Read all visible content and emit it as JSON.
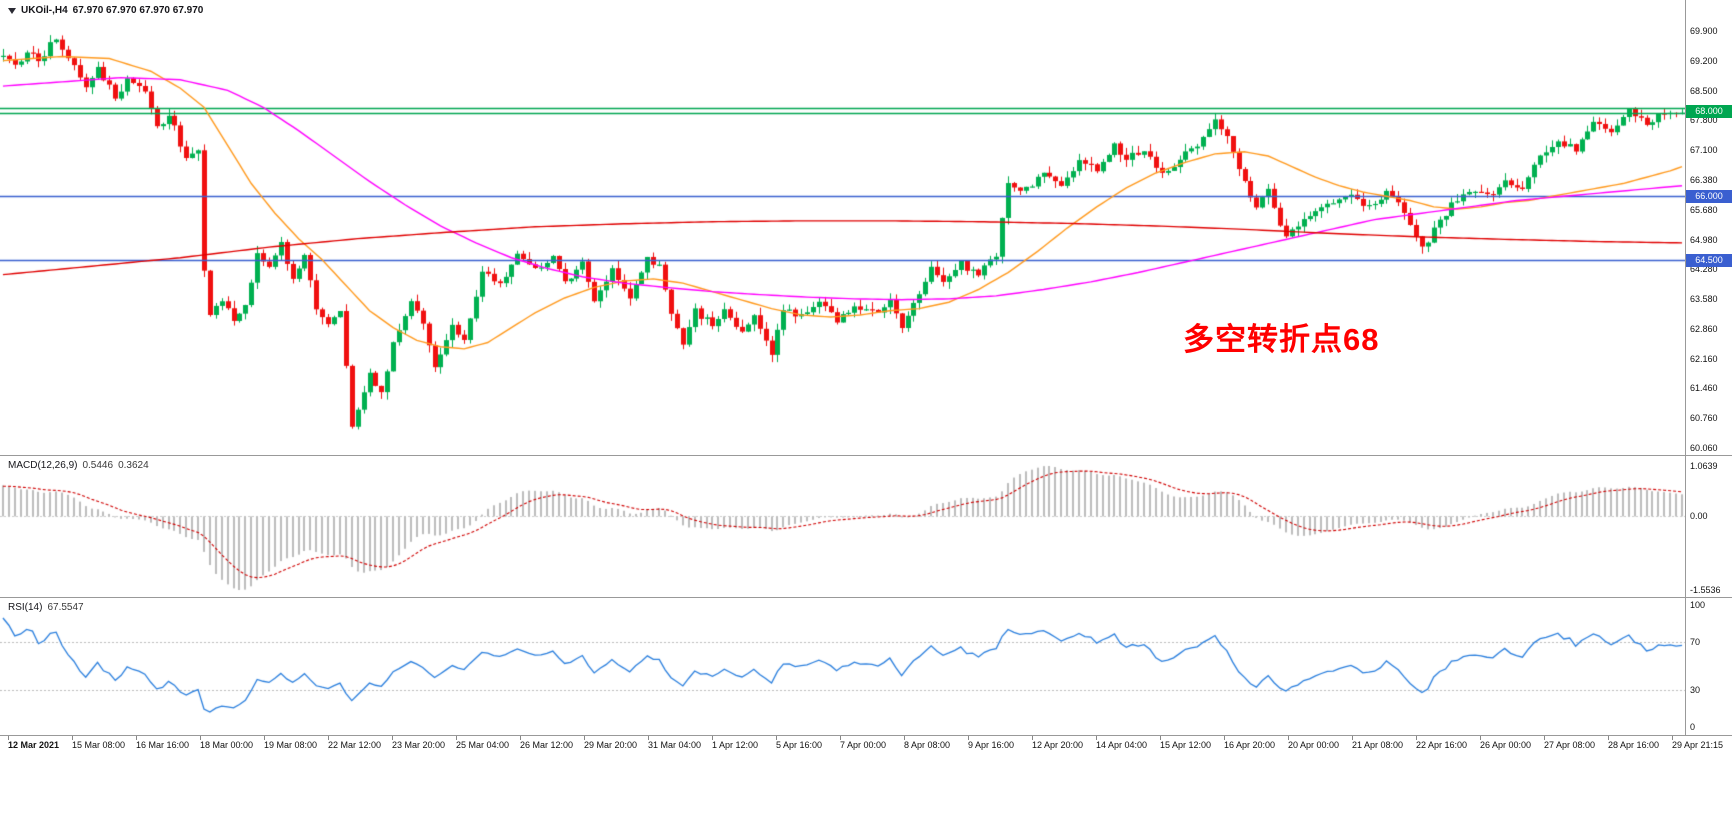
{
  "header": {
    "symbol_period": "UKOil-,H4",
    "ohlc_values": "67.970 67.970 67.970 67.970"
  },
  "colors": {
    "bull": "#00B050",
    "bear": "#F01010",
    "ma_fast": "#FF9A1E",
    "ma_mid": "#FF00FF",
    "ma_slow": "#E00000",
    "hline_blue": "#3A5FD0",
    "hline_green": "#00A651",
    "macd_hist": "#BDBDBD",
    "macd_signal": "#D00000",
    "rsi_line": "#2A7FDE",
    "level_line": "#BBBBBB",
    "annotation": "#FF0000",
    "axis_text": "#111111"
  },
  "chart_data": {
    "type": "candlestick+indicators",
    "main": {
      "annotation": "多空转折点68",
      "bar_count": 285,
      "last_close": 67.97,
      "axis_top_price": 69.9,
      "axis_bottom_price": 60.06,
      "price_labels": [
        "69.900",
        "69.200",
        "68.500",
        "67.800",
        "67.100",
        "66.380",
        "65.680",
        "64.980",
        "64.280",
        "63.580",
        "62.860",
        "62.160",
        "61.460",
        "60.760",
        "60.060"
      ],
      "close_path": [
        [
          0,
          69.35
        ],
        [
          2,
          69.1
        ],
        [
          4,
          69.4
        ],
        [
          6,
          69.2
        ],
        [
          9,
          69.75
        ],
        [
          11,
          69.3
        ],
        [
          14,
          68.65
        ],
        [
          16,
          69.0
        ],
        [
          19,
          68.35
        ],
        [
          21,
          68.75
        ],
        [
          24,
          68.5
        ],
        [
          26,
          67.6
        ],
        [
          28,
          67.95
        ],
        [
          31,
          66.9
        ],
        [
          33,
          67.05
        ],
        [
          34,
          64.2
        ],
        [
          35,
          63.15
        ],
        [
          37,
          63.6
        ],
        [
          39,
          63.0
        ],
        [
          41,
          63.4
        ],
        [
          43,
          64.65
        ],
        [
          45,
          64.35
        ],
        [
          47,
          64.85
        ],
        [
          49,
          64.0
        ],
        [
          51,
          64.55
        ],
        [
          53,
          63.4
        ],
        [
          55,
          62.95
        ],
        [
          57,
          63.35
        ],
        [
          59,
          60.6
        ],
        [
          60,
          60.95
        ],
        [
          62,
          61.9
        ],
        [
          64,
          61.3
        ],
        [
          66,
          62.5
        ],
        [
          69,
          63.45
        ],
        [
          71,
          63.0
        ],
        [
          73,
          61.95
        ],
        [
          76,
          62.95
        ],
        [
          78,
          62.6
        ],
        [
          81,
          64.25
        ],
        [
          84,
          63.95
        ],
        [
          87,
          64.6
        ],
        [
          90,
          64.3
        ],
        [
          93,
          64.55
        ],
        [
          95,
          63.95
        ],
        [
          98,
          64.45
        ],
        [
          100,
          63.5
        ],
        [
          103,
          64.3
        ],
        [
          106,
          63.55
        ],
        [
          109,
          64.5
        ],
        [
          111,
          64.35
        ],
        [
          113,
          63.3
        ],
        [
          115,
          62.55
        ],
        [
          117,
          63.3
        ],
        [
          120,
          62.95
        ],
        [
          122,
          63.35
        ],
        [
          125,
          62.75
        ],
        [
          127,
          63.2
        ],
        [
          130,
          62.3
        ],
        [
          132,
          63.3
        ],
        [
          135,
          63.2
        ],
        [
          138,
          63.5
        ],
        [
          141,
          63.1
        ],
        [
          144,
          63.4
        ],
        [
          147,
          63.25
        ],
        [
          150,
          63.5
        ],
        [
          152,
          62.85
        ],
        [
          154,
          63.5
        ],
        [
          157,
          64.3
        ],
        [
          159,
          63.95
        ],
        [
          162,
          64.4
        ],
        [
          165,
          64.15
        ],
        [
          168,
          64.6
        ],
        [
          170,
          66.3
        ],
        [
          173,
          66.15
        ],
        [
          176,
          66.5
        ],
        [
          179,
          66.3
        ],
        [
          182,
          66.85
        ],
        [
          185,
          66.6
        ],
        [
          188,
          67.2
        ],
        [
          190,
          66.9
        ],
        [
          193,
          67.1
        ],
        [
          196,
          66.5
        ],
        [
          199,
          66.85
        ],
        [
          202,
          67.25
        ],
        [
          205,
          67.8
        ],
        [
          207,
          67.35
        ],
        [
          210,
          66.35
        ],
        [
          212,
          65.75
        ],
        [
          214,
          66.1
        ],
        [
          217,
          65.0
        ],
        [
          219,
          65.35
        ],
        [
          222,
          65.6
        ],
        [
          225,
          65.9
        ],
        [
          228,
          66.0
        ],
        [
          231,
          65.75
        ],
        [
          234,
          66.1
        ],
        [
          237,
          65.65
        ],
        [
          240,
          64.75
        ],
        [
          242,
          65.2
        ],
        [
          245,
          65.8
        ],
        [
          248,
          66.1
        ],
        [
          251,
          66.0
        ],
        [
          254,
          66.3
        ],
        [
          257,
          66.2
        ],
        [
          260,
          66.9
        ],
        [
          263,
          67.3
        ],
        [
          266,
          67.1
        ],
        [
          269,
          67.75
        ],
        [
          272,
          67.5
        ],
        [
          275,
          68.05
        ],
        [
          278,
          67.7
        ],
        [
          281,
          68.0
        ],
        [
          284,
          67.97
        ]
      ],
      "ma_lines": [
        {
          "name": "ma-fast-orange",
          "color": "#FF9A1E",
          "path": [
            [
              0,
              69.2
            ],
            [
              10,
              69.3
            ],
            [
              18,
              69.25
            ],
            [
              25,
              68.95
            ],
            [
              30,
              68.55
            ],
            [
              34,
              68.1
            ],
            [
              38,
              67.2
            ],
            [
              42,
              66.3
            ],
            [
              46,
              65.6
            ],
            [
              50,
              65.0
            ],
            [
              54,
              64.5
            ],
            [
              58,
              63.9
            ],
            [
              62,
              63.3
            ],
            [
              66,
              62.9
            ],
            [
              70,
              62.6
            ],
            [
              74,
              62.45
            ],
            [
              78,
              62.4
            ],
            [
              82,
              62.55
            ],
            [
              86,
              62.9
            ],
            [
              90,
              63.25
            ],
            [
              95,
              63.6
            ],
            [
              100,
              63.85
            ],
            [
              105,
              64.0
            ],
            [
              110,
              64.05
            ],
            [
              115,
              63.95
            ],
            [
              120,
              63.75
            ],
            [
              125,
              63.55
            ],
            [
              130,
              63.35
            ],
            [
              135,
              63.2
            ],
            [
              140,
              63.15
            ],
            [
              145,
              63.2
            ],
            [
              150,
              63.3
            ],
            [
              155,
              63.35
            ],
            [
              160,
              63.5
            ],
            [
              165,
              63.8
            ],
            [
              170,
              64.2
            ],
            [
              175,
              64.7
            ],
            [
              180,
              65.25
            ],
            [
              185,
              65.75
            ],
            [
              190,
              66.2
            ],
            [
              195,
              66.55
            ],
            [
              200,
              66.8
            ],
            [
              205,
              67.0
            ],
            [
              210,
              67.05
            ],
            [
              214,
              66.95
            ],
            [
              218,
              66.7
            ],
            [
              222,
              66.45
            ],
            [
              226,
              66.25
            ],
            [
              230,
              66.1
            ],
            [
              234,
              66.0
            ],
            [
              238,
              65.9
            ],
            [
              242,
              65.75
            ],
            [
              246,
              65.7
            ],
            [
              250,
              65.75
            ],
            [
              254,
              65.85
            ],
            [
              258,
              65.9
            ],
            [
              262,
              66.0
            ],
            [
              266,
              66.1
            ],
            [
              270,
              66.2
            ],
            [
              274,
              66.3
            ],
            [
              278,
              66.45
            ],
            [
              282,
              66.6
            ],
            [
              284,
              66.7
            ]
          ]
        },
        {
          "name": "ma-mid-magenta",
          "color": "#FF00FF",
          "path": [
            [
              0,
              68.6
            ],
            [
              10,
              68.7
            ],
            [
              20,
              68.8
            ],
            [
              30,
              68.75
            ],
            [
              38,
              68.5
            ],
            [
              44,
              68.1
            ],
            [
              50,
              67.55
            ],
            [
              56,
              66.95
            ],
            [
              62,
              66.35
            ],
            [
              68,
              65.8
            ],
            [
              74,
              65.3
            ],
            [
              80,
              64.9
            ],
            [
              86,
              64.55
            ],
            [
              92,
              64.3
            ],
            [
              98,
              64.1
            ],
            [
              105,
              63.95
            ],
            [
              112,
              63.85
            ],
            [
              120,
              63.75
            ],
            [
              128,
              63.68
            ],
            [
              136,
              63.62
            ],
            [
              144,
              63.58
            ],
            [
              152,
              63.56
            ],
            [
              160,
              63.58
            ],
            [
              168,
              63.65
            ],
            [
              176,
              63.8
            ],
            [
              184,
              63.98
            ],
            [
              192,
              64.2
            ],
            [
              200,
              64.45
            ],
            [
              208,
              64.7
            ],
            [
              216,
              64.95
            ],
            [
              224,
              65.2
            ],
            [
              232,
              65.45
            ],
            [
              240,
              65.6
            ],
            [
              248,
              65.75
            ],
            [
              256,
              65.9
            ],
            [
              264,
              66.0
            ],
            [
              272,
              66.1
            ],
            [
              280,
              66.2
            ],
            [
              284,
              66.25
            ]
          ]
        },
        {
          "name": "ma-slow-red",
          "color": "#E00000",
          "path": [
            [
              0,
              64.15
            ],
            [
              15,
              64.35
            ],
            [
              30,
              64.55
            ],
            [
              45,
              64.8
            ],
            [
              60,
              65.0
            ],
            [
              75,
              65.15
            ],
            [
              90,
              65.28
            ],
            [
              105,
              65.35
            ],
            [
              120,
              65.4
            ],
            [
              135,
              65.42
            ],
            [
              150,
              65.42
            ],
            [
              165,
              65.4
            ],
            [
              180,
              65.36
            ],
            [
              195,
              65.3
            ],
            [
              210,
              65.22
            ],
            [
              225,
              65.12
            ],
            [
              240,
              65.04
            ],
            [
              255,
              64.98
            ],
            [
              270,
              64.93
            ],
            [
              284,
              64.9
            ]
          ]
        }
      ],
      "hlines": [
        {
          "name": "resistance-68-zone",
          "prices": [
            68.08,
            67.96
          ],
          "tag": "68.000",
          "tag_price": 68.02,
          "color": "#00A651"
        },
        {
          "name": "level-66",
          "prices": [
            66.0
          ],
          "tag": "66.000",
          "tag_price": 66.0,
          "color": "#3A5FD0"
        },
        {
          "name": "level-64.5",
          "prices": [
            64.5
          ],
          "tag": "64.500",
          "tag_price": 64.5,
          "color": "#3A5FD0"
        }
      ],
      "time_labels": [
        "12 Mar 2021",
        "15 Mar 08:00",
        "16 Mar 16:00",
        "18 Mar 00:00",
        "19 Mar 08:00",
        "22 Mar 12:00",
        "23 Mar 20:00",
        "25 Mar 04:00",
        "26 Mar 12:00",
        "29 Mar 20:00",
        "31 Mar 04:00",
        "1 Apr 12:00",
        "5 Apr 16:00",
        "7 Apr 00:00",
        "8 Apr 08:00",
        "9 Apr 16:00",
        "12 Apr 20:00",
        "14 Apr 04:00",
        "15 Apr 12:00",
        "16 Apr 20:00",
        "20 Apr 00:00",
        "21 Apr 08:00",
        "22 Apr 16:00",
        "26 Apr 00:00",
        "27 Apr 08:00",
        "28 Apr 16:00",
        "29 Apr 21:15"
      ]
    },
    "macd": {
      "label": "MACD(12,26,9)",
      "value_main": "0.5446",
      "value_signal": "0.3624",
      "max": 1.0639,
      "min": -1.5536,
      "axis": [
        {
          "value": 1.0639,
          "label": "1.0639"
        },
        {
          "value": 0,
          "label": "0.00"
        },
        {
          "value": -1.5536,
          "label": "-1.5536"
        }
      ]
    },
    "rsi": {
      "label": "RSI(14)",
      "value": "67.5547",
      "levels": [
        70,
        30
      ],
      "axis": [
        {
          "value": 100,
          "label": "100"
        },
        {
          "value": 70,
          "label": "70"
        },
        {
          "value": 30,
          "label": "30"
        },
        {
          "value": 0,
          "label": "0"
        }
      ]
    }
  }
}
